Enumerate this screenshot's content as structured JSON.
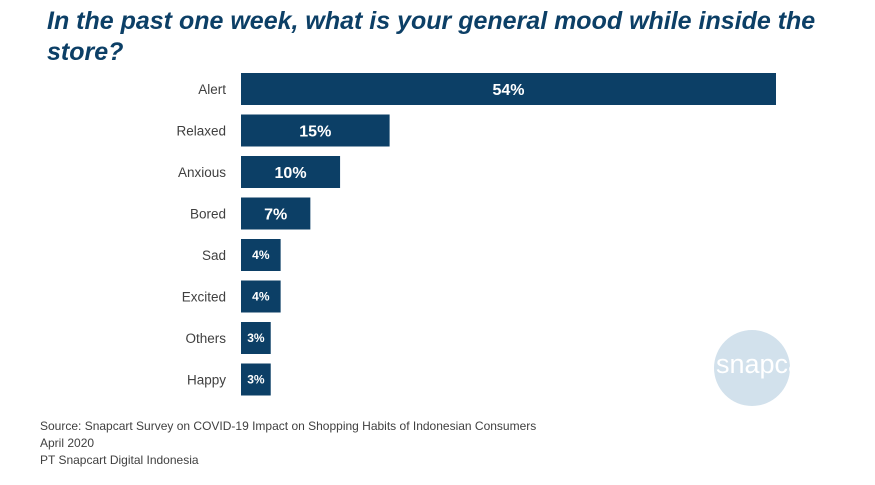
{
  "title": "In the past one week, what is your general mood while inside the store?",
  "chart_data": {
    "type": "bar",
    "orientation": "horizontal",
    "title": "In the past one week, what is your general mood while inside the store?",
    "categories": [
      "Alert",
      "Relaxed",
      "Anxious",
      "Bored",
      "Sad",
      "Excited",
      "Others",
      "Happy"
    ],
    "values": [
      54,
      15,
      10,
      7,
      4,
      4,
      3,
      3
    ],
    "value_labels": [
      "54%",
      "15%",
      "10%",
      "7%",
      "4%",
      "4%",
      "3%",
      "3%"
    ],
    "unit": "%",
    "xlim": [
      0,
      54
    ],
    "grid": false,
    "legend": "none",
    "bar_color": "#0c3f66"
  },
  "logo": {
    "text": "snapcart",
    "circle_color": "#d2e1ec"
  },
  "source": {
    "line1": "Source: Snapcart Survey on COVID-19 Impact on Shopping Habits of Indonesian Consumers",
    "line2": "April 2020",
    "line3": "PT Snapcart Digital Indonesia"
  }
}
